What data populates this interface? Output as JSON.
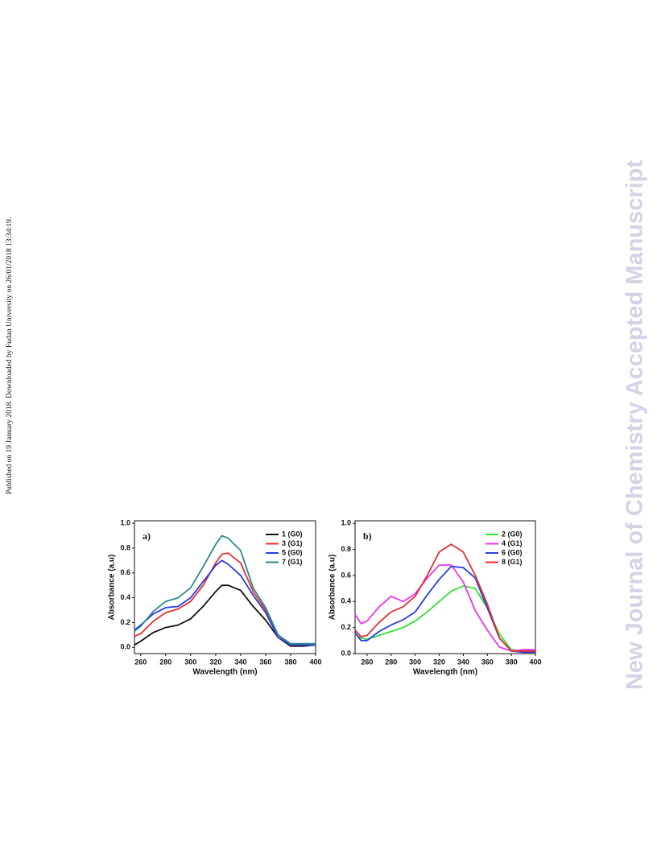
{
  "side_note": "Published on 19 January 2018. Downloaded by Fudan University on 26/01/2018 13:34:19.",
  "watermark": "New Journal of Chemistry Accepted Manuscript",
  "chart_data": [
    {
      "type": "line",
      "panel_label": "a)",
      "x_label": "Wavelength (nm)",
      "y_label": "Absorbance (a.u)",
      "x": [
        255,
        260,
        270,
        280,
        290,
        300,
        310,
        320,
        325,
        330,
        340,
        350,
        360,
        370,
        380,
        390,
        400
      ],
      "xlim": [
        255,
        400
      ],
      "xticks": [
        260,
        280,
        300,
        320,
        340,
        360,
        380,
        400
      ],
      "ylim": [
        -0.05,
        1.02
      ],
      "yticks": [
        {
          "value": 0,
          "label": "0.0"
        },
        0.2,
        0.4,
        0.6,
        0.8,
        {
          "value": 1,
          "label": "1.0"
        }
      ],
      "legend": "upper right",
      "series": [
        {
          "name": "1 (G0)",
          "color": "#111111",
          "values": [
            0.02,
            0.05,
            0.12,
            0.16,
            0.18,
            0.23,
            0.33,
            0.45,
            0.5,
            0.5,
            0.46,
            0.33,
            0.22,
            0.08,
            0.01,
            0.01,
            0.02
          ]
        },
        {
          "name": "3 (G1)",
          "color": "#e53030",
          "values": [
            0.09,
            0.11,
            0.21,
            0.28,
            0.31,
            0.37,
            0.5,
            0.68,
            0.75,
            0.76,
            0.68,
            0.45,
            0.3,
            0.1,
            0.02,
            0.02,
            0.02
          ]
        },
        {
          "name": "5 (G0)",
          "color": "#2b3de0",
          "values": [
            0.14,
            0.18,
            0.27,
            0.32,
            0.33,
            0.4,
            0.53,
            0.66,
            0.7,
            0.67,
            0.58,
            0.42,
            0.28,
            0.08,
            0.02,
            0.02,
            0.02
          ]
        },
        {
          "name": "7 (G1)",
          "color": "#2a8a8a",
          "values": [
            0.13,
            0.17,
            0.29,
            0.37,
            0.4,
            0.48,
            0.65,
            0.83,
            0.9,
            0.88,
            0.78,
            0.48,
            0.32,
            0.1,
            0.03,
            0.03,
            0.03
          ]
        }
      ]
    },
    {
      "type": "line",
      "panel_label": "b)",
      "x_label": "Wavelength (nm)",
      "y_label": "Absorbance (a.u)",
      "x": [
        250,
        255,
        260,
        270,
        280,
        290,
        300,
        310,
        320,
        330,
        340,
        350,
        360,
        370,
        380,
        390,
        400
      ],
      "xlim": [
        250,
        400
      ],
      "xticks": [
        260,
        280,
        300,
        320,
        340,
        360,
        380,
        400
      ],
      "ylim": [
        0,
        1.02
      ],
      "yticks": [
        {
          "value": 0,
          "label": "0.0"
        },
        0.2,
        0.4,
        0.6,
        0.8,
        {
          "value": 1,
          "label": "1.0"
        }
      ],
      "legend": "upper right",
      "series": [
        {
          "name": "2 (G0)",
          "color": "#33e033",
          "values": [
            0.15,
            0.12,
            0.11,
            0.14,
            0.17,
            0.2,
            0.25,
            0.32,
            0.4,
            0.48,
            0.52,
            0.5,
            0.35,
            0.15,
            0.03,
            0.02,
            0.02
          ]
        },
        {
          "name": "4 (G1)",
          "color": "#ee33ee",
          "values": [
            0.3,
            0.23,
            0.25,
            0.36,
            0.44,
            0.4,
            0.46,
            0.58,
            0.68,
            0.68,
            0.55,
            0.33,
            0.18,
            0.05,
            0.02,
            0.03,
            0.03
          ]
        },
        {
          "name": "6 (G0)",
          "color": "#2b3de0",
          "values": [
            0.16,
            0.1,
            0.1,
            0.17,
            0.22,
            0.26,
            0.32,
            0.45,
            0.57,
            0.67,
            0.66,
            0.58,
            0.35,
            0.12,
            0.02,
            0.01,
            0.01
          ]
        },
        {
          "name": "8 (G1)",
          "color": "#e53030",
          "values": [
            0.18,
            0.13,
            0.14,
            0.24,
            0.32,
            0.36,
            0.44,
            0.6,
            0.78,
            0.84,
            0.78,
            0.6,
            0.38,
            0.12,
            0.02,
            0.02,
            0.02
          ]
        }
      ]
    }
  ]
}
